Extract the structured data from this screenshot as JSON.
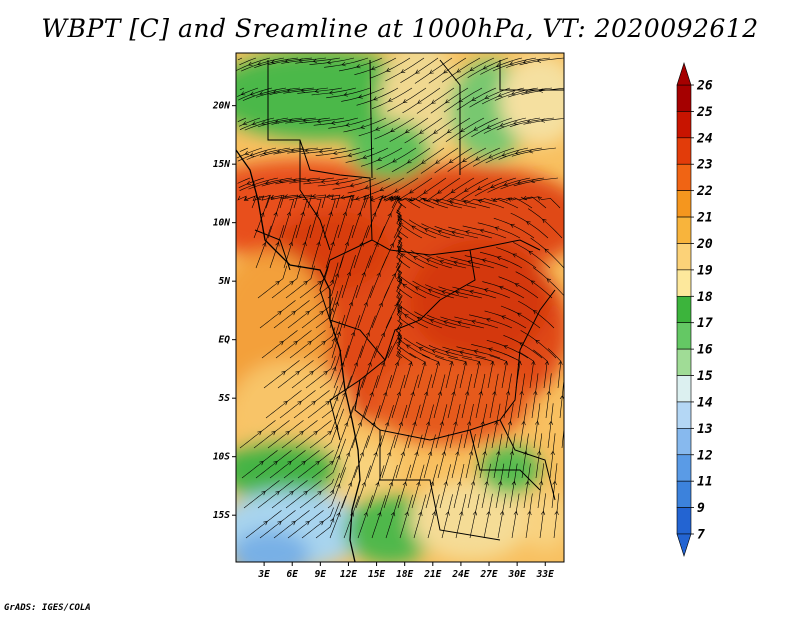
{
  "title": "WBPT [C] and Sreamline at 1000hPa, VT: 2020092612",
  "credit": "GrADS: IGES/COLA",
  "map": {
    "lon_ticks": [
      "3E",
      "6E",
      "9E",
      "12E",
      "15E",
      "18E",
      "21E",
      "24E",
      "27E",
      "30E",
      "33E"
    ],
    "lat_ticks": [
      "20N",
      "15N",
      "10N",
      "5N",
      "EQ",
      "5S",
      "10S",
      "15S"
    ],
    "lon_range": [
      0,
      35
    ],
    "lat_range": [
      -19,
      24.5
    ]
  },
  "colorbar": {
    "labels": [
      "26",
      "25",
      "24",
      "23",
      "22",
      "21",
      "20",
      "19",
      "18",
      "17",
      "16",
      "15",
      "14",
      "13",
      "12",
      "11",
      "9",
      "7"
    ],
    "colors": [
      "#a50000",
      "#c81400",
      "#e23c0a",
      "#f06414",
      "#f5961e",
      "#f8b43c",
      "#fcd278",
      "#fde89c",
      "#3cb43c",
      "#64c864",
      "#a0dc96",
      "#dcf0f0",
      "#b4d7f5",
      "#87b9ee",
      "#5a9be6",
      "#3c82dc",
      "#2364d2"
    ],
    "colors_note_arrows": [
      "#a50000",
      "#2364d2"
    ]
  }
}
